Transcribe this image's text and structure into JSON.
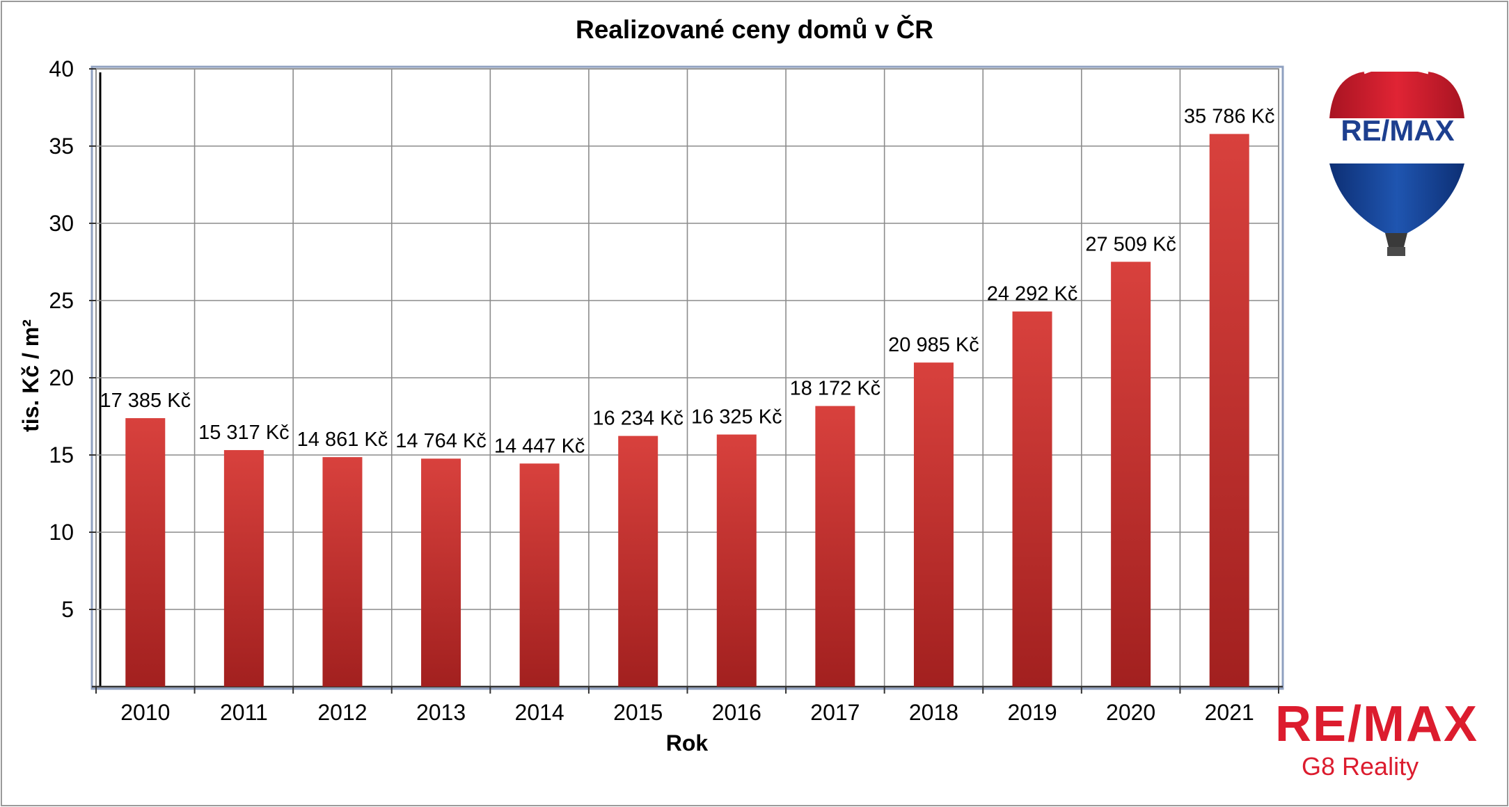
{
  "colors": {
    "bar": "#c0302f",
    "bar_light": "#d8413d",
    "bar_dark": "#a2201f",
    "grid": "#8c8c8c",
    "plot_border": "#8fa0c0",
    "brand_red": "#dc1c2e",
    "brand_blue": "#003da5"
  },
  "branding": {
    "balloon_text": "RE/MAX",
    "logo_text": "RE/MAX",
    "office_name": "G8 Reality",
    "balloon_icon": "remax-balloon-icon"
  },
  "chart_data": {
    "type": "bar",
    "title": "Realizované ceny domů v ČR",
    "xlabel": "Rok",
    "ylabel": "tis. Kč / m²",
    "ylim": [
      0,
      40
    ],
    "yticks": [
      "5",
      "10",
      "15",
      "20",
      "25",
      "30",
      "35",
      "40"
    ],
    "categories": [
      "2010",
      "2011",
      "2012",
      "2013",
      "2014",
      "2015",
      "2016",
      "2017",
      "2018",
      "2019",
      "2020",
      "2021"
    ],
    "values": [
      17.385,
      15.317,
      14.861,
      14.764,
      14.447,
      16.234,
      16.325,
      18.172,
      20.985,
      24.292,
      27.509,
      35.786
    ],
    "data_labels": [
      "17 385 Kč",
      "15 317 Kč",
      "14 861 Kč",
      "14 764 Kč",
      "14 447 Kč",
      "16 234 Kč",
      "16 325 Kč",
      "18 172 Kč",
      "20 985 Kč",
      "24 292 Kč",
      "27 509 Kč",
      "35 786 Kč"
    ],
    "grid": true,
    "legend": "none"
  }
}
